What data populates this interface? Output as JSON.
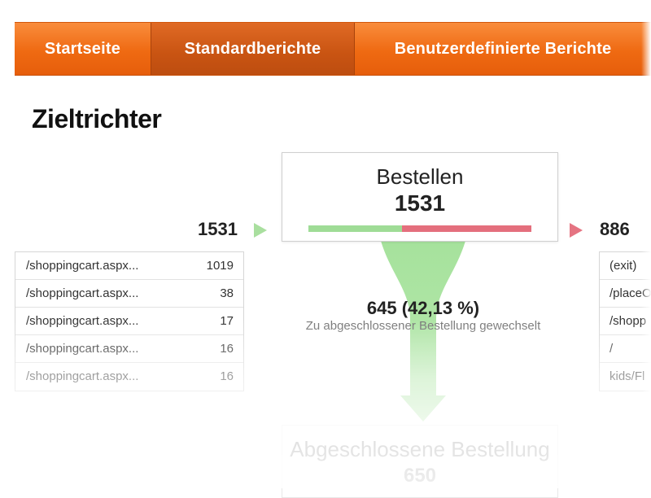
{
  "nav": {
    "tabs": [
      {
        "label": "Startseite",
        "active": false
      },
      {
        "label": "Standardberichte",
        "active": true
      },
      {
        "label": "Benutzerdefinierte Berichte",
        "active": false
      }
    ]
  },
  "page": {
    "title": "Zieltrichter"
  },
  "funnel": {
    "step": {
      "name": "Bestellen",
      "count": "1531",
      "continued_fraction": 0.4213
    },
    "entries": {
      "count": "1531",
      "sources": [
        {
          "path": "/shoppingcart.aspx...",
          "count": "1019"
        },
        {
          "path": "/shoppingcart.aspx...",
          "count": "38"
        },
        {
          "path": "/shoppingcart.aspx...",
          "count": "17"
        },
        {
          "path": "/shoppingcart.aspx...",
          "count": "16"
        },
        {
          "path": "/shoppingcart.aspx...",
          "count": "16"
        }
      ]
    },
    "exits": {
      "count": "886",
      "destinations": [
        {
          "path": "(exit)"
        },
        {
          "path": "/placeO"
        },
        {
          "path": "/shopp"
        },
        {
          "path": "/"
        },
        {
          "path": "kids/Fl"
        }
      ]
    },
    "conversion": {
      "count": "645 (42,13 %)",
      "label": "Zu abgeschlossener Bestellung gewechselt"
    },
    "next_step": {
      "name": "Abgeschlossene Bestellung",
      "count": "650"
    }
  },
  "colors": {
    "nav_orange": "#f07215",
    "nav_active": "#c95412",
    "continued_green": "#9fdc96",
    "exit_red": "#e46f7d"
  },
  "icons": {
    "entry_arrow": "play-right-green",
    "exit_arrow": "play-right-red",
    "funnel": "funnel-down-arrow"
  }
}
